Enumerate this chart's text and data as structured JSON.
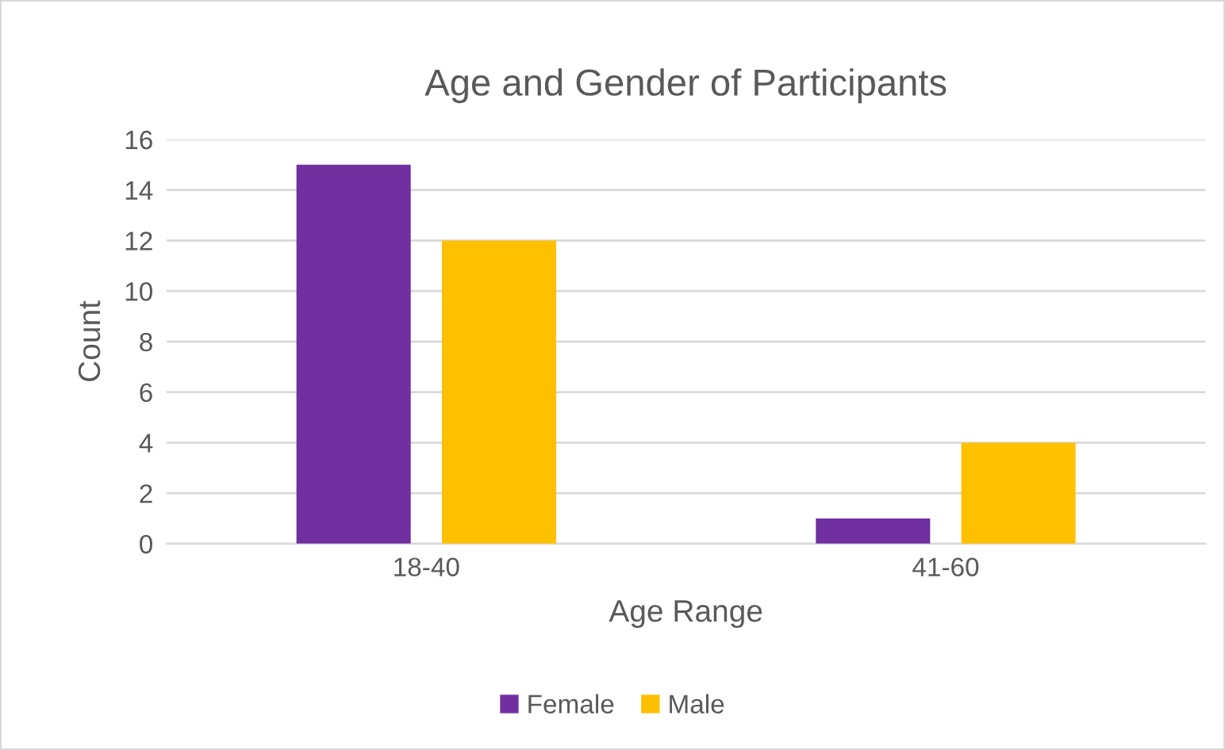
{
  "chart_data": {
    "type": "bar",
    "title": "Age and Gender of Participants",
    "xlabel": "Age Range",
    "ylabel": "Count",
    "categories": [
      "18-40",
      "41-60"
    ],
    "series": [
      {
        "name": "Female",
        "color": "#7030a0",
        "values": [
          15,
          1
        ]
      },
      {
        "name": "Male",
        "color": "#ffc000",
        "values": [
          12,
          4
        ]
      }
    ],
    "ylim": [
      0,
      16
    ],
    "yticks": [
      0,
      2,
      4,
      6,
      8,
      10,
      12,
      14,
      16
    ],
    "grid": "y",
    "legend": "bottom"
  }
}
